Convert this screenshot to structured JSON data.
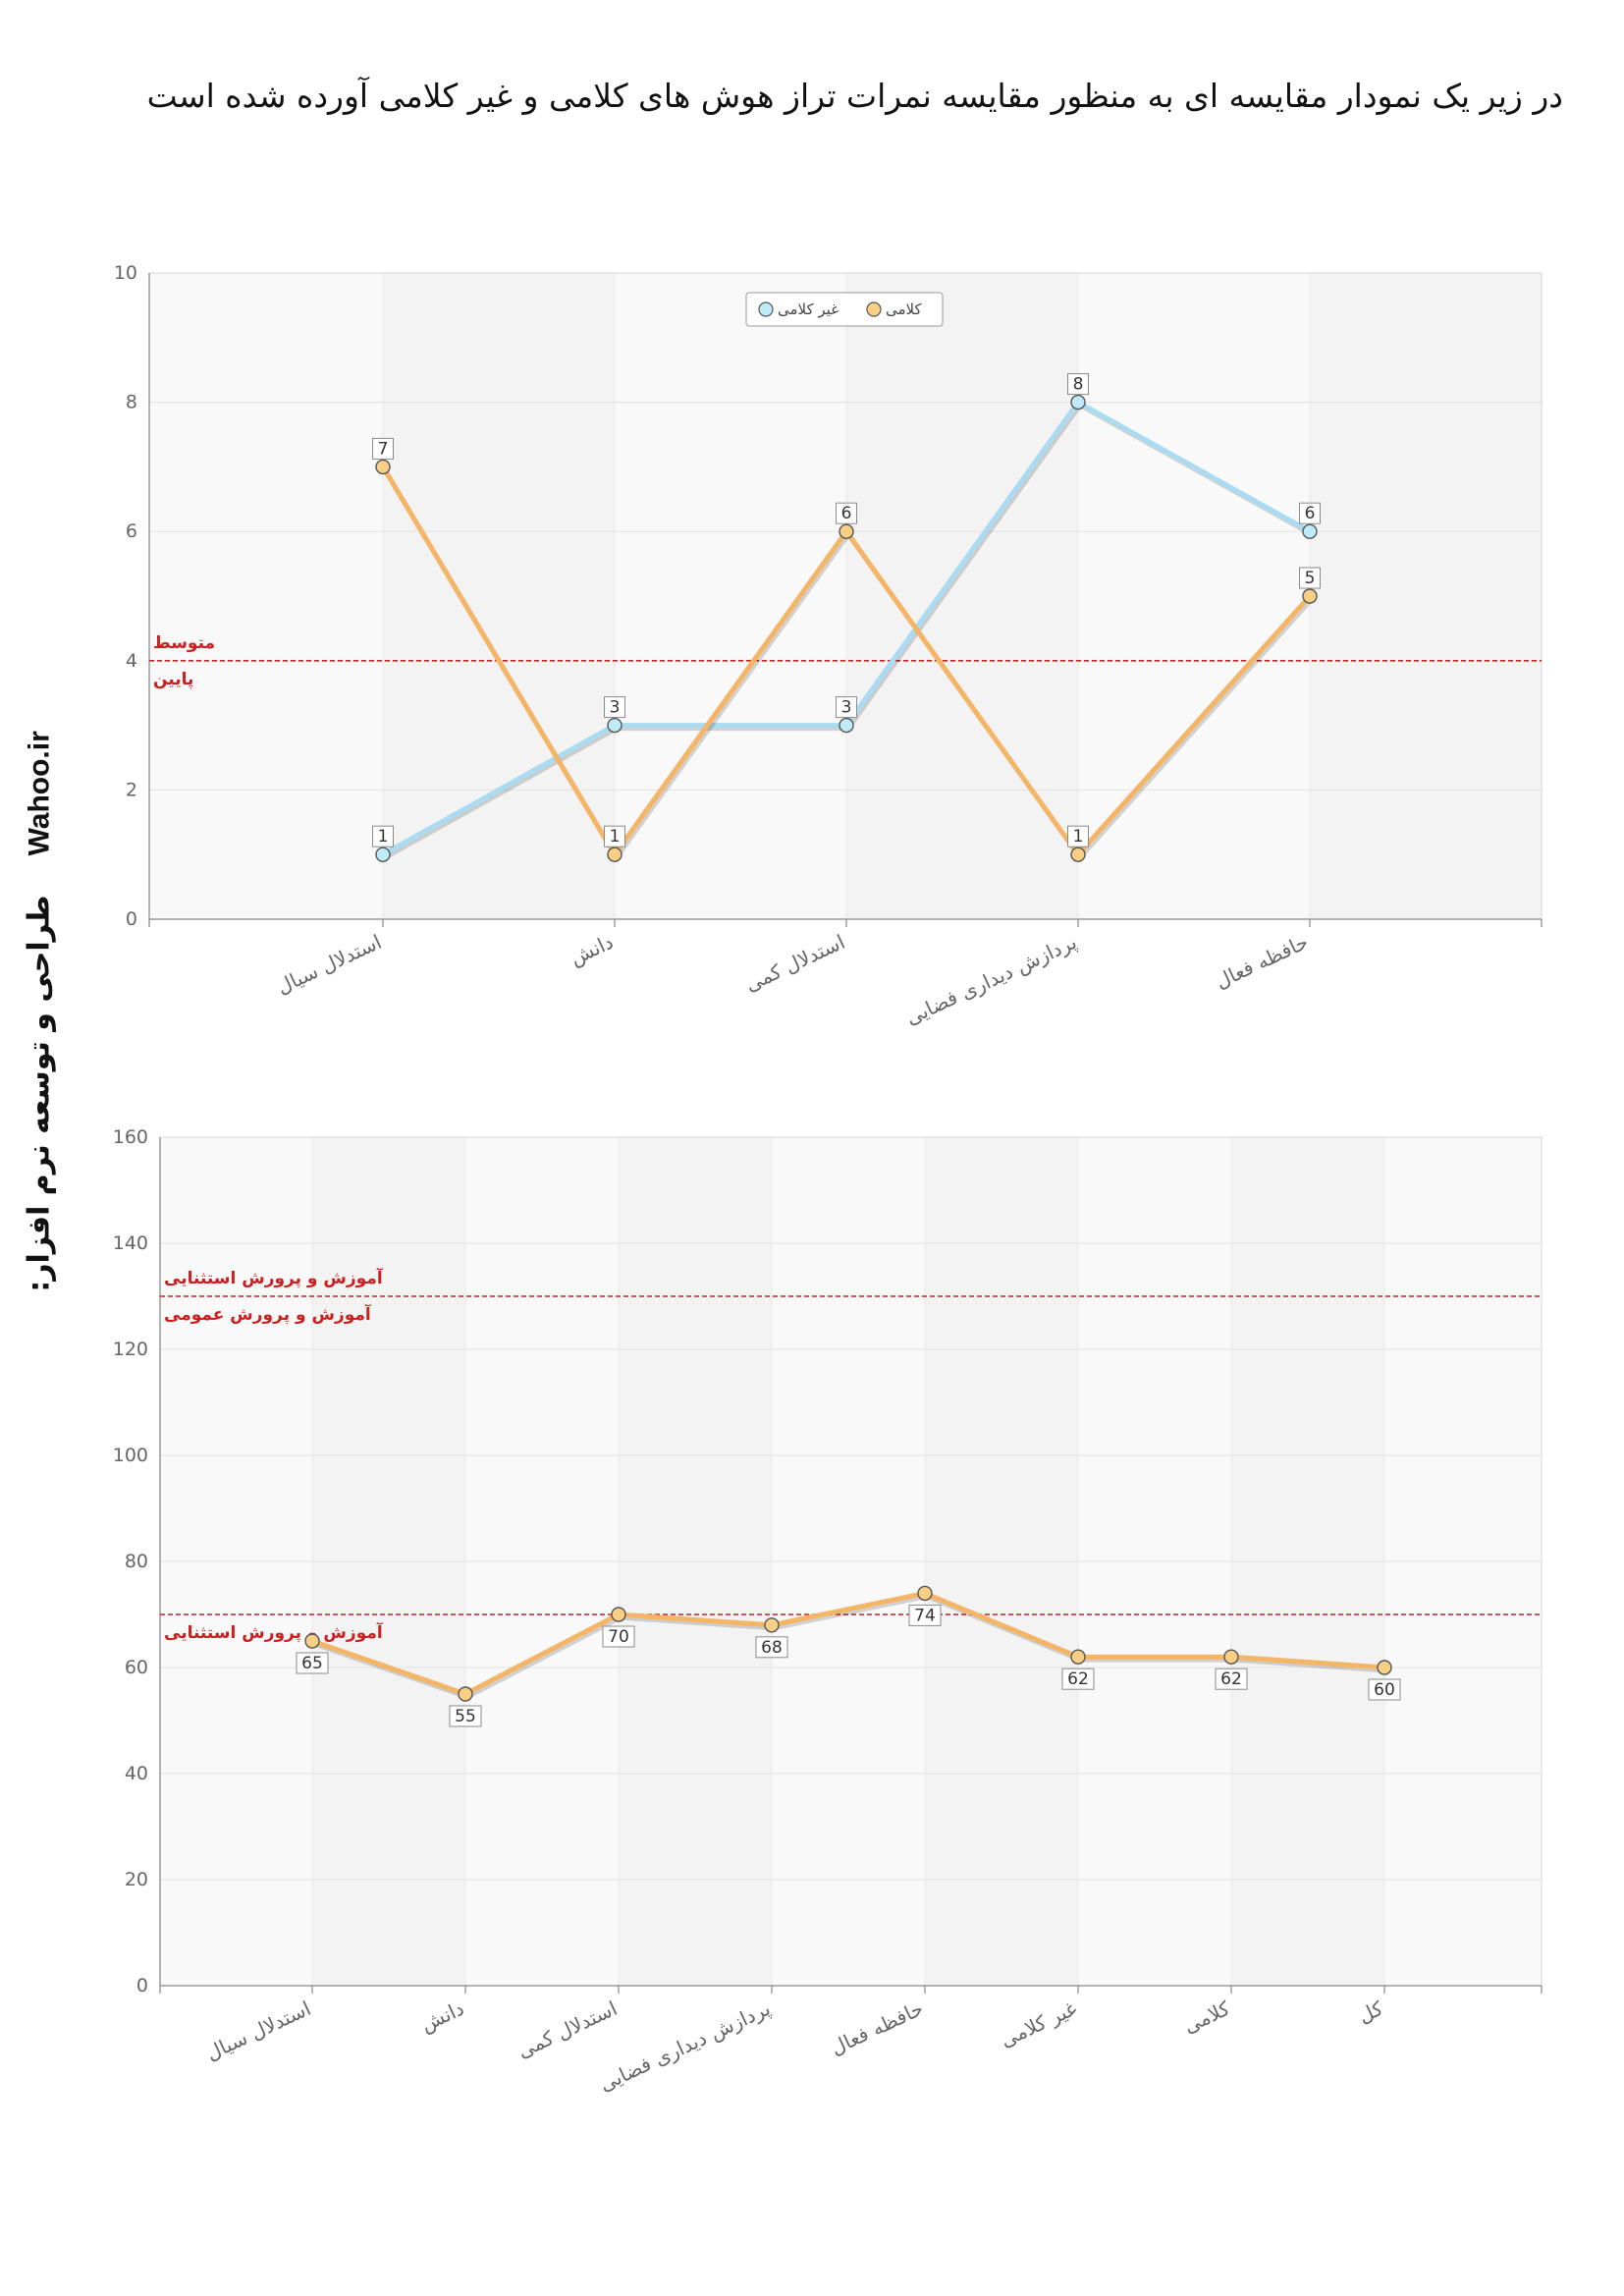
{
  "header": {
    "title": "در زیر یک نمودار مقایسه ای به منظور مقایسه نمرات تراز هوش های کلامی و غیر کلامی آورده شده است"
  },
  "side_credit": {
    "credit_text": "طراحی و توسعه نرم افزار:",
    "brand": "Wahoo.ir"
  },
  "colors": {
    "nonverbal": "#8ed1ee",
    "verbal": "#f4b566",
    "reference_line": "#cc1f1f",
    "plot_bg": "#f9f9f9"
  },
  "chart_data": [
    {
      "type": "line",
      "title": "",
      "xlabel": "",
      "ylabel": "",
      "categories": [
        "استدلال سیال",
        "دانش",
        "استدلال کمی",
        "پردازش دیداری فضایی",
        "حافظه فعال"
      ],
      "ylim": [
        0,
        10
      ],
      "yticks": [
        "0",
        "2",
        "4",
        "6",
        "8",
        "10"
      ],
      "series": [
        {
          "name": "غیر کلامی",
          "values": [
            1,
            3,
            3,
            8,
            6
          ]
        },
        {
          "name": "کلامی",
          "values": [
            7,
            1,
            6,
            1,
            5
          ]
        }
      ],
      "reference_lines": [
        {
          "value": 4,
          "label_above": "متوسط",
          "label_below": "پایین"
        }
      ],
      "legend": "top-center",
      "grid": true
    },
    {
      "type": "line",
      "title": "",
      "xlabel": "",
      "ylabel": "",
      "categories": [
        "استدلال سیال",
        "دانش",
        "استدلال کمی",
        "پردازش دیداری فضایی",
        "حافظه فعال",
        "غیر کلامی",
        "کلامی",
        "کل"
      ],
      "ylim": [
        0,
        160
      ],
      "yticks": [
        "0",
        "20",
        "40",
        "60",
        "80",
        "100",
        "120",
        "140",
        "160"
      ],
      "series": [
        {
          "values": [
            65,
            55,
            70,
            68,
            74,
            62,
            62,
            60
          ]
        }
      ],
      "reference_lines": [
        {
          "value": 130,
          "label_above": "آموزش و پرورش استثنایی",
          "label_below": "آموزش و پرورش عمومی"
        },
        {
          "value": 70,
          "label_below": "آموزش و پرورش استثنایی"
        }
      ],
      "grid": true
    }
  ]
}
